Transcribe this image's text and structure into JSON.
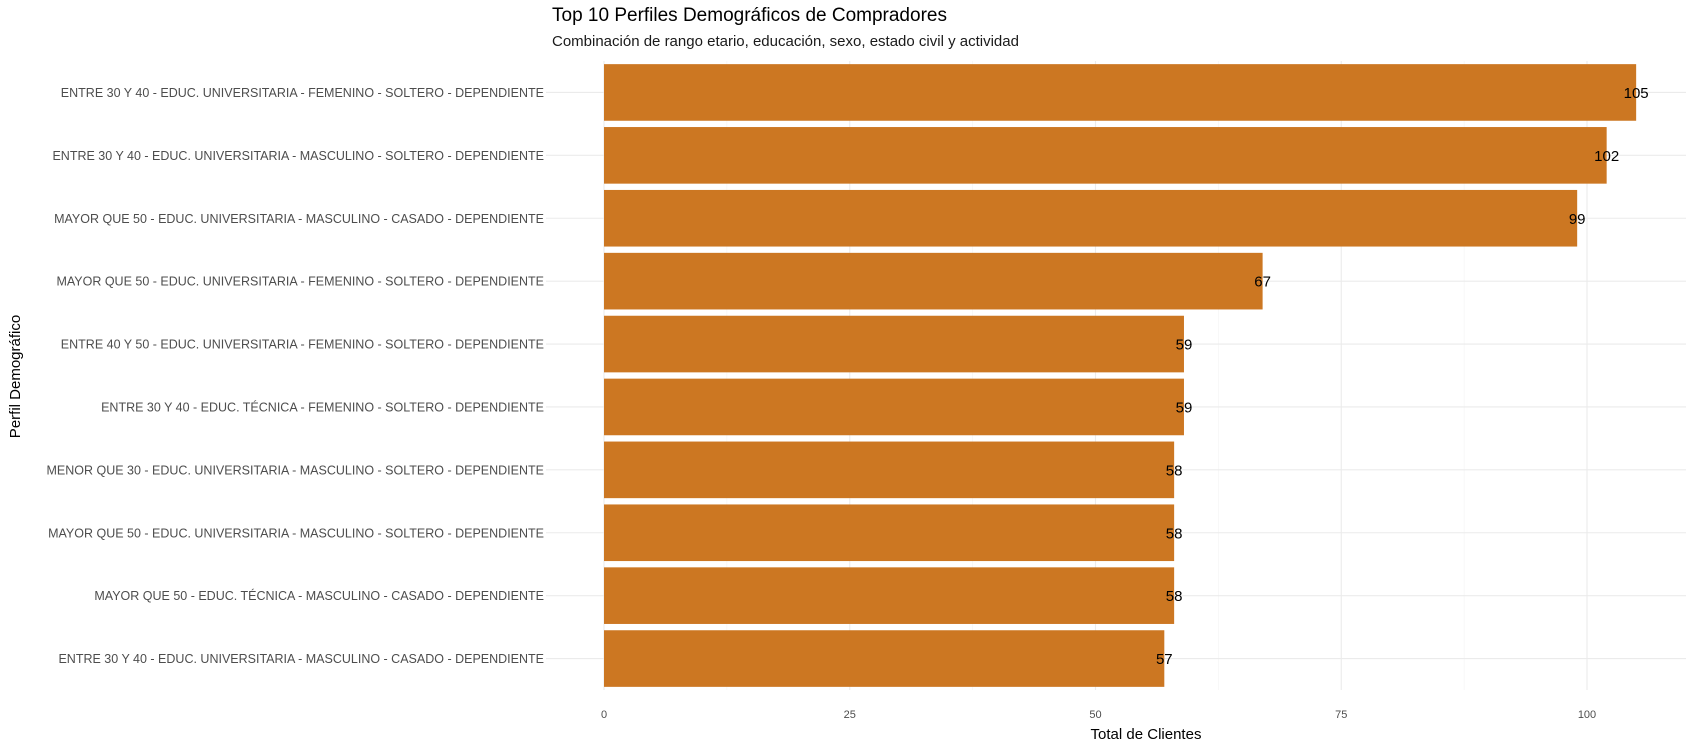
{
  "chart_data": {
    "type": "bar",
    "orientation": "horizontal",
    "title": "Top 10 Perfiles Demográficos de Compradores",
    "subtitle": "Combinación de rango etario, educación, sexo, estado civil y actividad",
    "xlabel": "Total de Clientes",
    "ylabel": "Perfil Demográfico",
    "xlim": [
      0,
      110
    ],
    "xticks": [
      0,
      25,
      50,
      75,
      100
    ],
    "bar_color": "#CC7722",
    "categories": [
      "ENTRE 30 Y 40 - EDUC. UNIVERSITARIA - FEMENINO - SOLTERO - DEPENDIENTE",
      "ENTRE 30 Y 40 - EDUC. UNIVERSITARIA - MASCULINO - SOLTERO - DEPENDIENTE",
      "MAYOR QUE 50 - EDUC. UNIVERSITARIA - MASCULINO - CASADO - DEPENDIENTE",
      "MAYOR QUE 50 - EDUC. UNIVERSITARIA - FEMENINO - SOLTERO - DEPENDIENTE",
      "ENTRE 40 Y 50 - EDUC. UNIVERSITARIA - FEMENINO - SOLTERO - DEPENDIENTE",
      "ENTRE 30 Y 40 - EDUC. TÉCNICA - FEMENINO - SOLTERO - DEPENDIENTE",
      "MENOR QUE 30 - EDUC. UNIVERSITARIA - MASCULINO - SOLTERO - DEPENDIENTE",
      "MAYOR QUE 50 - EDUC. UNIVERSITARIA - MASCULINO - SOLTERO - DEPENDIENTE",
      "MAYOR QUE 50 - EDUC. TÉCNICA - MASCULINO - CASADO - DEPENDIENTE",
      "ENTRE 30 Y 40 - EDUC. UNIVERSITARIA - MASCULINO - CASADO - DEPENDIENTE"
    ],
    "values": [
      105,
      102,
      99,
      67,
      59,
      59,
      58,
      58,
      58,
      57
    ]
  }
}
